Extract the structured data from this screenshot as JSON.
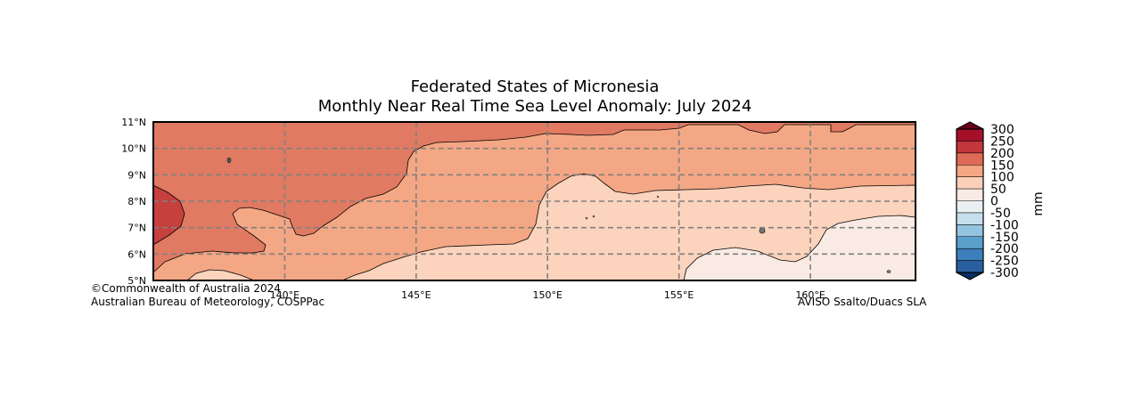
{
  "title": {
    "line1": "Federated States of Micronesia",
    "line2": "Monthly Near Real Time Sea Level Anomaly: July 2024"
  },
  "map": {
    "lon_range": [
      135,
      164
    ],
    "lat_range": [
      5,
      11
    ],
    "lon_ticks": [
      {
        "value": 140,
        "label": "140°E"
      },
      {
        "value": 145,
        "label": "145°E"
      },
      {
        "value": 150,
        "label": "150°E"
      },
      {
        "value": 155,
        "label": "155°E"
      },
      {
        "value": 160,
        "label": "160°E"
      }
    ],
    "lat_ticks": [
      {
        "value": 5,
        "label": "5°N"
      },
      {
        "value": 6,
        "label": "6°N"
      },
      {
        "value": 7,
        "label": "7°N"
      },
      {
        "value": 8,
        "label": "8°N"
      },
      {
        "value": 9,
        "label": "9°N"
      },
      {
        "value": 10,
        "label": "10°N"
      },
      {
        "value": 11,
        "label": "11°N"
      }
    ]
  },
  "colorbar": {
    "unit": "mm",
    "levels": [
      {
        "label": "300",
        "color": "#a50f29"
      },
      {
        "label": "250",
        "color": "#c2363d"
      },
      {
        "label": "200",
        "color": "#df6a55"
      },
      {
        "label": "150",
        "color": "#f4a582"
      },
      {
        "label": "100",
        "color": "#fbd0b9"
      },
      {
        "label": "50",
        "color": "#f8ebe5"
      },
      {
        "label": "0",
        "color": "#eaeff3"
      },
      {
        "label": "-50",
        "color": "#c7dfed"
      },
      {
        "label": "-100",
        "color": "#94c4df"
      },
      {
        "label": "-150",
        "color": "#5aa0cc"
      },
      {
        "label": "-200",
        "color": "#3d7fbc"
      },
      {
        "label": "-250",
        "color": "#2a5f9f"
      },
      {
        "label": "-300",
        "color": ""
      }
    ],
    "top_cap_color": "#67001f",
    "bottom_cap_color": "#053061"
  },
  "fills": {
    "c200": "#e07a62",
    "c150": "#f4a784",
    "c100": "#fcd3bd",
    "c50": "#f9ebe4",
    "c250": "#c6403e"
  },
  "credits": {
    "left_line1": "©Commonwealth of Australia 2024",
    "left_line2": "Australian Bureau of Meteorology, COSPPac",
    "right": "AVISO Ssalto/Duacs SLA"
  }
}
